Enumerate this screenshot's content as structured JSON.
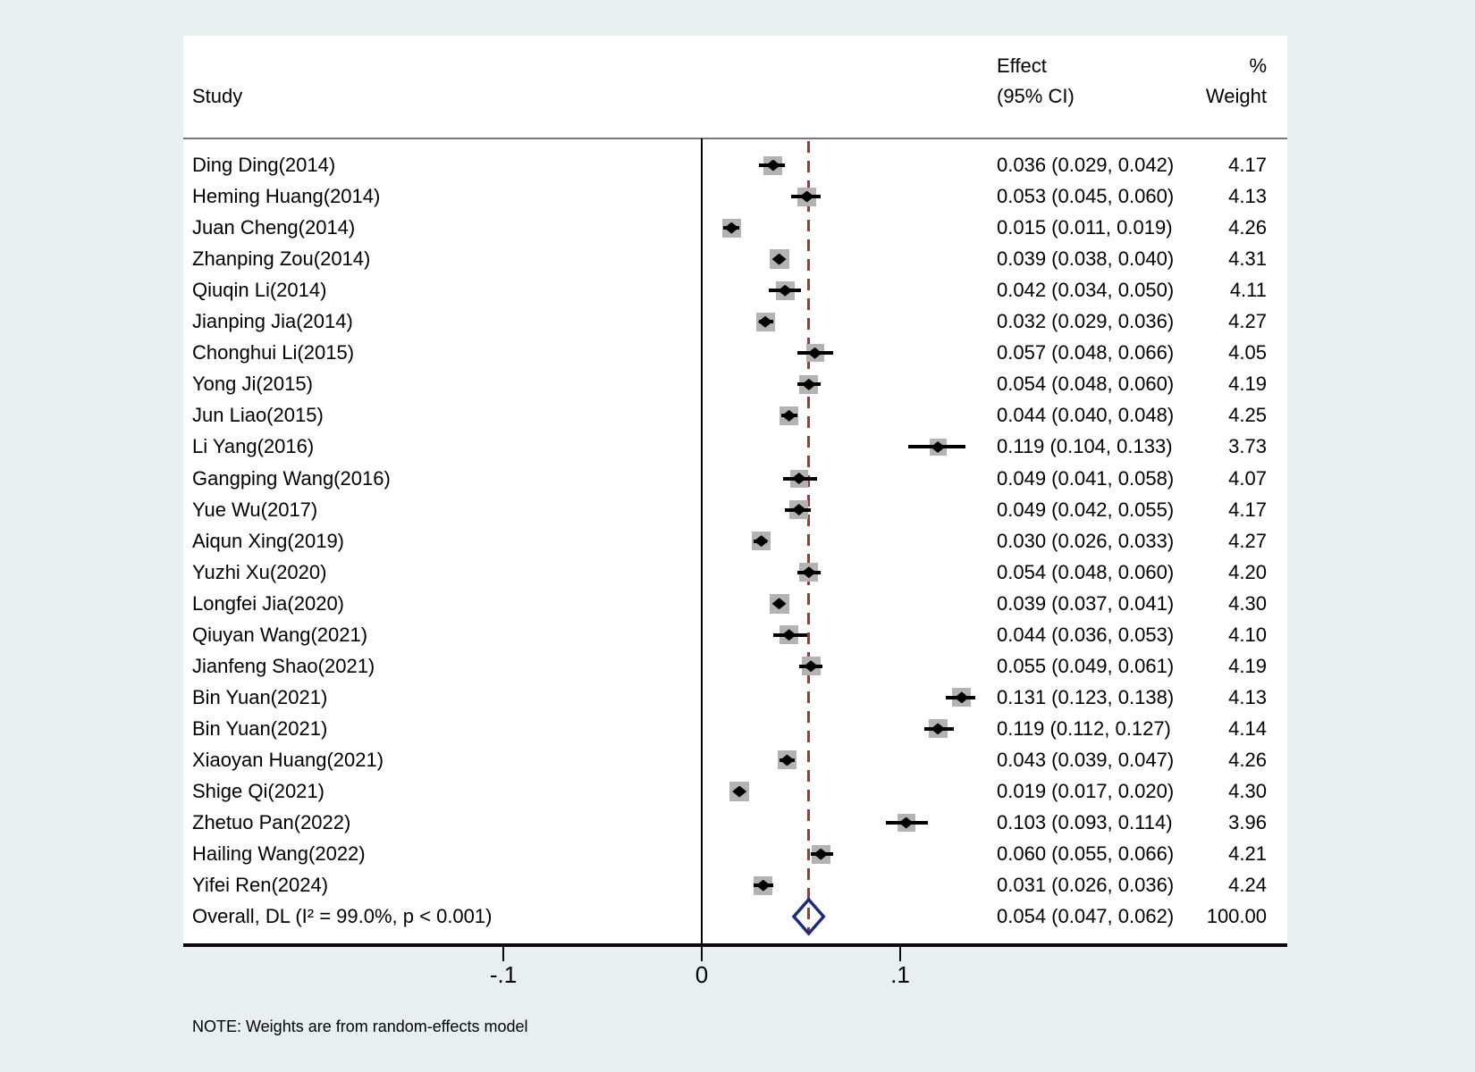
{
  "colors": {
    "background": "#e7eff1",
    "panel": "#ffffff",
    "text": "#000000",
    "axis_line": "#0a0a0a",
    "separator_line": "#777777",
    "zero_line": "#000000",
    "dashed_line": "#943b3e",
    "ci_line": "#000000",
    "weight_box": "#b3b3b3",
    "point_marker": "#000000",
    "overall_diamond": "#1f2a7a"
  },
  "chart_data": {
    "type": "forest",
    "columns": {
      "study": "Study",
      "effect_line1": "Effect",
      "effect_line2": "(95% CI)",
      "weight_line1": "%",
      "weight_line2": "Weight"
    },
    "x_axis": {
      "ticks": [
        {
          "label": "-.1",
          "value": -0.1
        },
        {
          "label": "0",
          "value": 0
        },
        {
          "label": ".1",
          "value": 0.1
        }
      ],
      "range_note": "effect-size scale, reference line at 0, dashed line at overall estimate"
    },
    "studies": [
      {
        "label": "Ding Ding(2014)",
        "effect": 0.036,
        "ci_low": 0.029,
        "ci_high": 0.042,
        "effect_text": "0.036 (0.029, 0.042)",
        "weight": 4.17,
        "weight_text": "4.17"
      },
      {
        "label": "Heming Huang(2014)",
        "effect": 0.053,
        "ci_low": 0.045,
        "ci_high": 0.06,
        "effect_text": "0.053 (0.045, 0.060)",
        "weight": 4.13,
        "weight_text": "4.13"
      },
      {
        "label": "Juan Cheng(2014)",
        "effect": 0.015,
        "ci_low": 0.011,
        "ci_high": 0.019,
        "effect_text": "0.015 (0.011, 0.019)",
        "weight": 4.26,
        "weight_text": "4.26"
      },
      {
        "label": "Zhanping Zou(2014)",
        "effect": 0.039,
        "ci_low": 0.038,
        "ci_high": 0.04,
        "effect_text": "0.039 (0.038, 0.040)",
        "weight": 4.31,
        "weight_text": "4.31"
      },
      {
        "label": "Qiuqin Li(2014)",
        "effect": 0.042,
        "ci_low": 0.034,
        "ci_high": 0.05,
        "effect_text": "0.042 (0.034, 0.050)",
        "weight": 4.11,
        "weight_text": "4.11"
      },
      {
        "label": "Jianping Jia(2014)",
        "effect": 0.032,
        "ci_low": 0.029,
        "ci_high": 0.036,
        "effect_text": "0.032 (0.029, 0.036)",
        "weight": 4.27,
        "weight_text": "4.27"
      },
      {
        "label": "Chonghui Li(2015)",
        "effect": 0.057,
        "ci_low": 0.048,
        "ci_high": 0.066,
        "effect_text": "0.057 (0.048, 0.066)",
        "weight": 4.05,
        "weight_text": "4.05"
      },
      {
        "label": "Yong Ji(2015)",
        "effect": 0.054,
        "ci_low": 0.048,
        "ci_high": 0.06,
        "effect_text": "0.054 (0.048, 0.060)",
        "weight": 4.19,
        "weight_text": "4.19"
      },
      {
        "label": "Jun Liao(2015)",
        "effect": 0.044,
        "ci_low": 0.04,
        "ci_high": 0.048,
        "effect_text": "0.044 (0.040, 0.048)",
        "weight": 4.25,
        "weight_text": "4.25"
      },
      {
        "label": "Li Yang(2016)",
        "effect": 0.119,
        "ci_low": 0.104,
        "ci_high": 0.133,
        "effect_text": "0.119 (0.104, 0.133)",
        "weight": 3.73,
        "weight_text": "3.73"
      },
      {
        "label": "Gangping Wang(2016)",
        "effect": 0.049,
        "ci_low": 0.041,
        "ci_high": 0.058,
        "effect_text": "0.049 (0.041, 0.058)",
        "weight": 4.07,
        "weight_text": "4.07"
      },
      {
        "label": "Yue Wu(2017)",
        "effect": 0.049,
        "ci_low": 0.042,
        "ci_high": 0.055,
        "effect_text": "0.049 (0.042, 0.055)",
        "weight": 4.17,
        "weight_text": "4.17"
      },
      {
        "label": "Aiqun Xing(2019)",
        "effect": 0.03,
        "ci_low": 0.026,
        "ci_high": 0.033,
        "effect_text": "0.030 (0.026, 0.033)",
        "weight": 4.27,
        "weight_text": "4.27"
      },
      {
        "label": "Yuzhi Xu(2020)",
        "effect": 0.054,
        "ci_low": 0.048,
        "ci_high": 0.06,
        "effect_text": "0.054 (0.048, 0.060)",
        "weight": 4.2,
        "weight_text": "4.20"
      },
      {
        "label": "Longfei Jia(2020)",
        "effect": 0.039,
        "ci_low": 0.037,
        "ci_high": 0.041,
        "effect_text": "0.039 (0.037, 0.041)",
        "weight": 4.3,
        "weight_text": "4.30"
      },
      {
        "label": "Qiuyan Wang(2021)",
        "effect": 0.044,
        "ci_low": 0.036,
        "ci_high": 0.053,
        "effect_text": "0.044 (0.036, 0.053)",
        "weight": 4.1,
        "weight_text": "4.10"
      },
      {
        "label": "Jianfeng Shao(2021)",
        "effect": 0.055,
        "ci_low": 0.049,
        "ci_high": 0.061,
        "effect_text": "0.055 (0.049, 0.061)",
        "weight": 4.19,
        "weight_text": "4.19"
      },
      {
        "label": "Bin Yuan(2021)",
        "effect": 0.131,
        "ci_low": 0.123,
        "ci_high": 0.138,
        "effect_text": "0.131 (0.123, 0.138)",
        "weight": 4.13,
        "weight_text": "4.13"
      },
      {
        "label": "Bin Yuan(2021)",
        "effect": 0.119,
        "ci_low": 0.112,
        "ci_high": 0.127,
        "effect_text": "0.119 (0.112, 0.127)",
        "weight": 4.14,
        "weight_text": "4.14"
      },
      {
        "label": "Xiaoyan Huang(2021)",
        "effect": 0.043,
        "ci_low": 0.039,
        "ci_high": 0.047,
        "effect_text": "0.043 (0.039, 0.047)",
        "weight": 4.26,
        "weight_text": "4.26"
      },
      {
        "label": "Shige Qi(2021)",
        "effect": 0.019,
        "ci_low": 0.017,
        "ci_high": 0.02,
        "effect_text": "0.019 (0.017, 0.020)",
        "weight": 4.3,
        "weight_text": "4.30"
      },
      {
        "label": "Zhetuo Pan(2022)",
        "effect": 0.103,
        "ci_low": 0.093,
        "ci_high": 0.114,
        "effect_text": "0.103 (0.093, 0.114)",
        "weight": 3.96,
        "weight_text": "3.96"
      },
      {
        "label": "Hailing Wang(2022)",
        "effect": 0.06,
        "ci_low": 0.055,
        "ci_high": 0.066,
        "effect_text": "0.060 (0.055, 0.066)",
        "weight": 4.21,
        "weight_text": "4.21"
      },
      {
        "label": "Yifei Ren(2024)",
        "effect": 0.031,
        "ci_low": 0.026,
        "ci_high": 0.036,
        "effect_text": "0.031 (0.026, 0.036)",
        "weight": 4.24,
        "weight_text": "4.24"
      }
    ],
    "overall": {
      "label": "Overall, DL (I² = 99.0%, p < 0.001)",
      "effect": 0.054,
      "ci_low": 0.047,
      "ci_high": 0.062,
      "effect_text": "0.054 (0.047, 0.062)",
      "weight_text": "100.00"
    },
    "note": "NOTE: Weights are from random-effects model"
  }
}
